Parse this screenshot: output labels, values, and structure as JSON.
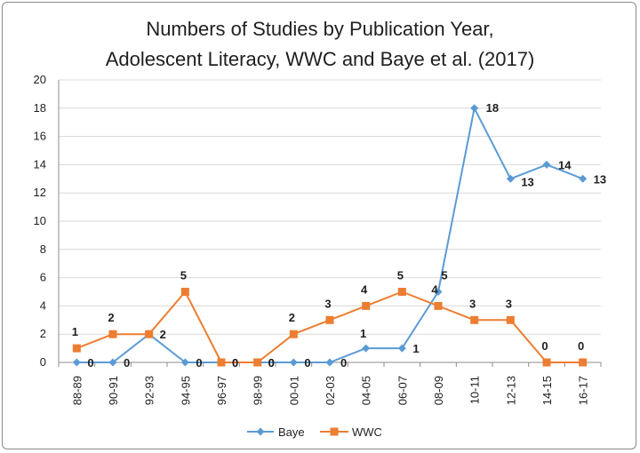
{
  "chart_data": {
    "type": "line",
    "title": [
      "Numbers of Studies by Publication Year,",
      "Adolescent Literacy, WWC and Baye et al. (2017)"
    ],
    "categories": [
      "88-89",
      "90-91",
      "92-93",
      "94-95",
      "96-97",
      "98-99",
      "00-01",
      "02-03",
      "04-05",
      "06-07",
      "08-09",
      "10-11",
      "12-13",
      "14-15",
      "16-17"
    ],
    "ylim": [
      0,
      20
    ],
    "yticks": [
      0,
      2,
      4,
      6,
      8,
      10,
      12,
      14,
      16,
      18,
      20
    ],
    "grid": true,
    "legend_position": "bottom",
    "series": [
      {
        "name": "Baye",
        "color": "#5b9bd5",
        "marker": "diamond",
        "values": [
          0,
          0,
          2,
          0,
          0,
          0,
          0,
          0,
          1,
          1,
          5,
          18,
          13,
          14,
          13
        ],
        "labels": [
          "0",
          "0",
          "2",
          "0",
          "0",
          "0",
          "0",
          "0",
          "1",
          "1",
          "5",
          "18",
          "13",
          "14",
          "13"
        ]
      },
      {
        "name": "WWC",
        "color": "#ed7d31",
        "marker": "square",
        "values": [
          1,
          2,
          2,
          5,
          0,
          0,
          2,
          3,
          4,
          5,
          4,
          3,
          3,
          0,
          0
        ],
        "labels": [
          "1",
          "2",
          "",
          "5",
          "0",
          "0",
          "2",
          "3",
          "4",
          "5",
          "4",
          "3",
          "3",
          "0",
          "0"
        ]
      }
    ]
  }
}
